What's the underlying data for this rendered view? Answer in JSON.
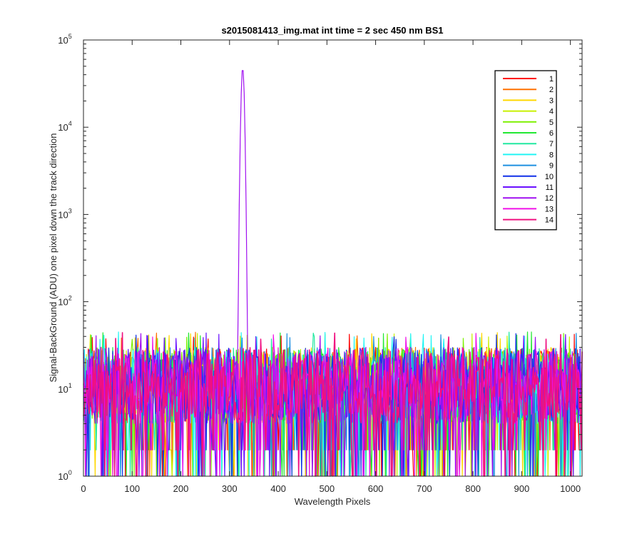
{
  "chart_data": {
    "type": "line",
    "title": "s2015081413_img.mat int time = 2 sec  450 nm BS1",
    "xlabel": "Wavelength Pixels",
    "ylabel": "Signal-BackGround (ADU) one pixel down the track direction",
    "xlim": [
      0,
      1024
    ],
    "ylim": [
      1,
      100000
    ],
    "yscale": "log",
    "grid": false,
    "legend_position": "top-right",
    "x_ticks": [
      0,
      100,
      200,
      300,
      400,
      500,
      600,
      700,
      800,
      900,
      1000
    ],
    "x_tick_labels": [
      "0",
      "100",
      "200",
      "300",
      "400",
      "500",
      "600",
      "700",
      "800",
      "900",
      "1000"
    ],
    "y_ticks": [
      1,
      10,
      100,
      1000,
      10000,
      100000
    ],
    "y_tick_labels": [
      {
        "base": "10",
        "exp": "0"
      },
      {
        "base": "10",
        "exp": "1"
      },
      {
        "base": "10",
        "exp": "2"
      },
      {
        "base": "10",
        "exp": "3"
      },
      {
        "base": "10",
        "exp": "4"
      },
      {
        "base": "10",
        "exp": "5"
      }
    ],
    "noise_floor": {
      "x_range": [
        0,
        1024
      ],
      "typical_range": [
        2,
        30
      ],
      "max_spikes": [
        37,
        45
      ]
    },
    "peak": {
      "x": 327,
      "y": 48000,
      "series": "12"
    },
    "series": [
      {
        "name": "1",
        "color": "#ff0000"
      },
      {
        "name": "2",
        "color": "#ff7000"
      },
      {
        "name": "3",
        "color": "#ffd700"
      },
      {
        "name": "4",
        "color": "#c8f000"
      },
      {
        "name": "5",
        "color": "#7df000"
      },
      {
        "name": "6",
        "color": "#22e833"
      },
      {
        "name": "7",
        "color": "#20e8a0"
      },
      {
        "name": "8",
        "color": "#22f5f5"
      },
      {
        "name": "9",
        "color": "#1e90e0"
      },
      {
        "name": "10",
        "color": "#1030e8"
      },
      {
        "name": "11",
        "color": "#6a10ff"
      },
      {
        "name": "12",
        "color": "#a010f0"
      },
      {
        "name": "13",
        "color": "#f010e8"
      },
      {
        "name": "14",
        "color": "#f01080"
      }
    ]
  }
}
